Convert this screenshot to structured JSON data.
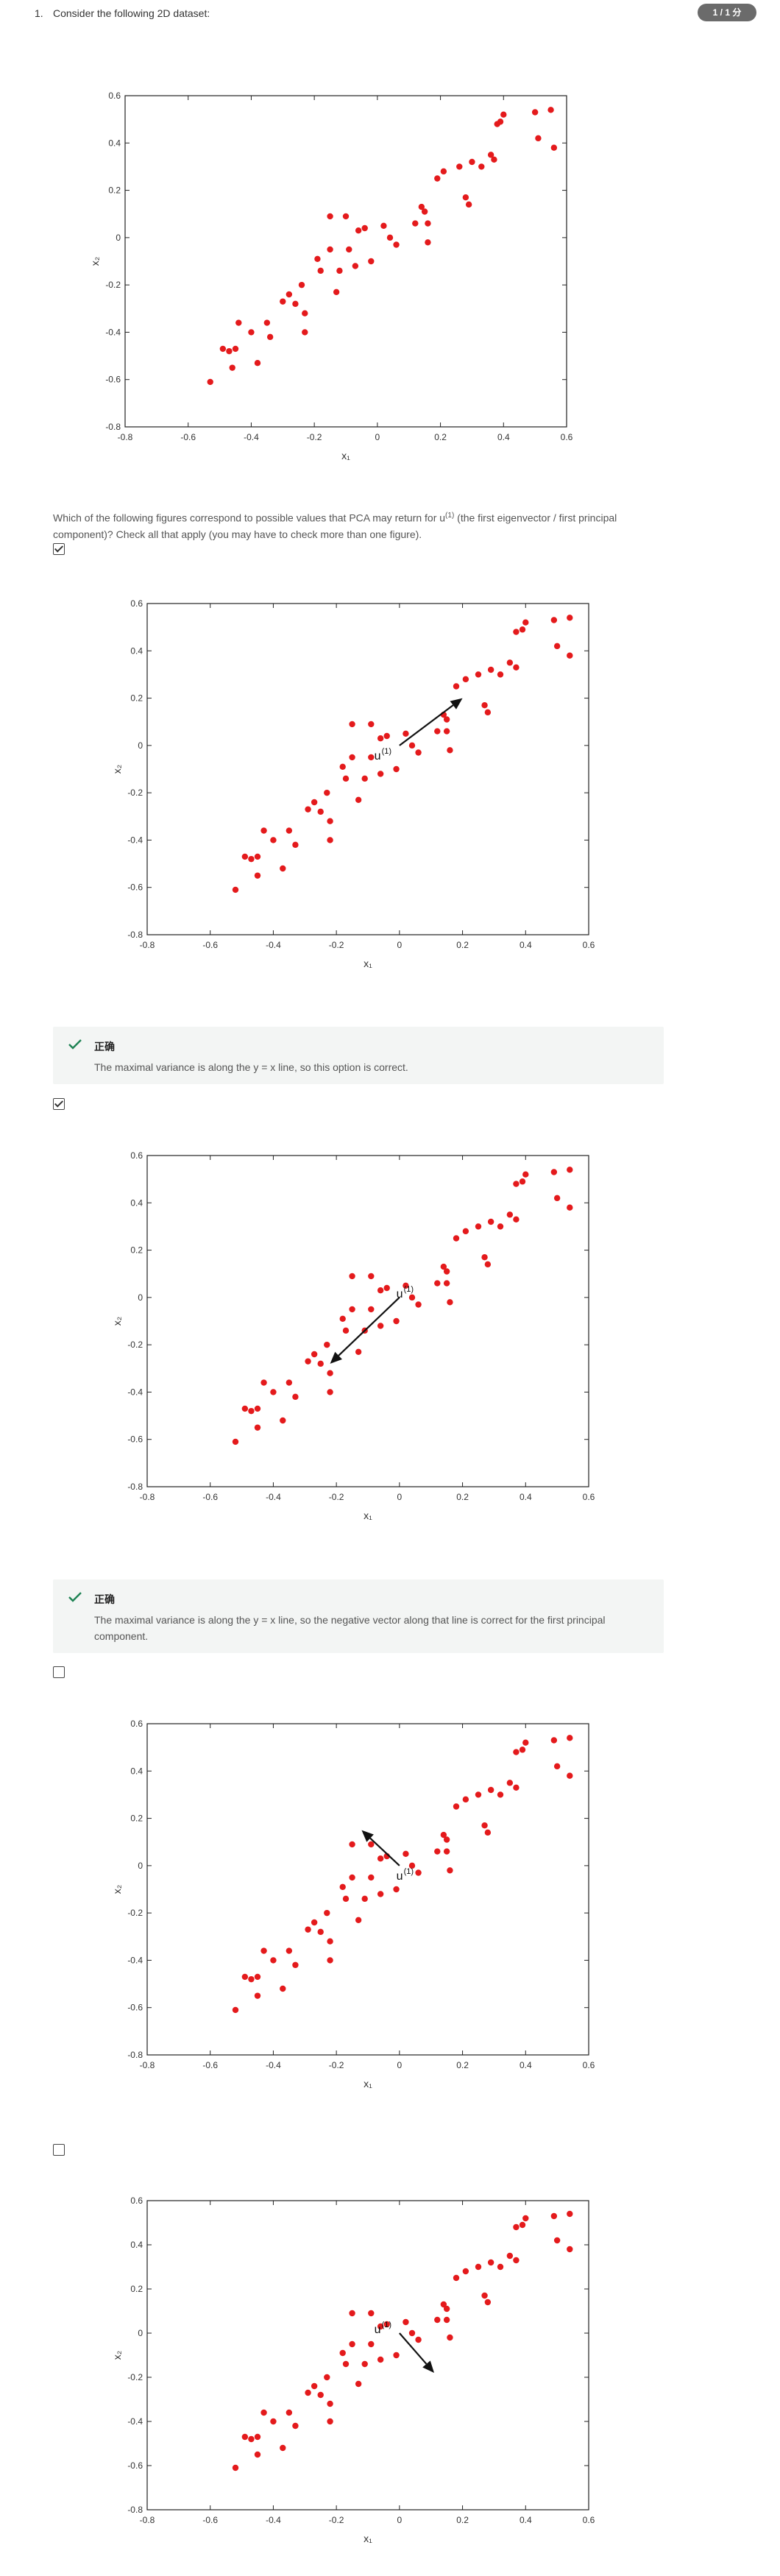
{
  "question": {
    "number": "1.",
    "intro": "Consider the following 2D dataset:",
    "score": "1 / 1 分",
    "prompt_before": "Which of the following figures correspond to possible values that PCA may return for u",
    "prompt_sup": "(1)",
    "prompt_after": " (the first eigenvector / first principal component)? Check all that apply (you may have to check more than one figure)."
  },
  "chart_data": [
    {
      "type": "scatter",
      "xlabel": "x₁",
      "ylabel": "x₂",
      "xlim": [
        -0.8,
        0.6
      ],
      "ylim": [
        -0.8,
        0.6
      ],
      "x_ticks": [
        "-0.8",
        "-0.6",
        "-0.4",
        "-0.2",
        "0",
        "0.2",
        "0.4",
        "0.6"
      ],
      "y_ticks": [
        "-0.8",
        "-0.6",
        "-0.4",
        "-0.2",
        "0",
        "0.2",
        "0.4",
        "0.6"
      ],
      "point_color": "#e41a1c",
      "points": [
        [
          -0.53,
          -0.61
        ],
        [
          -0.49,
          -0.47
        ],
        [
          -0.47,
          -0.48
        ],
        [
          -0.46,
          -0.55
        ],
        [
          -0.45,
          -0.47
        ],
        [
          -0.44,
          -0.36
        ],
        [
          -0.4,
          -0.4
        ],
        [
          -0.38,
          -0.53
        ],
        [
          -0.35,
          -0.36
        ],
        [
          -0.34,
          -0.42
        ],
        [
          -0.3,
          -0.27
        ],
        [
          -0.28,
          -0.24
        ],
        [
          -0.26,
          -0.28
        ],
        [
          -0.24,
          -0.2
        ],
        [
          -0.23,
          -0.4
        ],
        [
          -0.23,
          -0.32
        ],
        [
          -0.19,
          -0.09
        ],
        [
          -0.18,
          -0.14
        ],
        [
          -0.15,
          0.09
        ],
        [
          -0.15,
          -0.05
        ],
        [
          -0.13,
          -0.23
        ],
        [
          -0.12,
          -0.14
        ],
        [
          -0.1,
          0.09
        ],
        [
          -0.09,
          -0.05
        ],
        [
          -0.07,
          -0.12
        ],
        [
          -0.06,
          0.03
        ],
        [
          -0.04,
          0.04
        ],
        [
          -0.02,
          -0.1
        ],
        [
          0.02,
          0.05
        ],
        [
          0.04,
          0.0
        ],
        [
          0.06,
          -0.03
        ],
        [
          0.12,
          0.06
        ],
        [
          0.14,
          0.13
        ],
        [
          0.15,
          0.11
        ],
        [
          0.16,
          0.06
        ],
        [
          0.16,
          -0.02
        ],
        [
          0.19,
          0.25
        ],
        [
          0.21,
          0.28
        ],
        [
          0.26,
          0.3
        ],
        [
          0.28,
          0.17
        ],
        [
          0.29,
          0.14
        ],
        [
          0.3,
          0.32
        ],
        [
          0.33,
          0.3
        ],
        [
          0.36,
          0.35
        ],
        [
          0.37,
          0.33
        ],
        [
          0.38,
          0.48
        ],
        [
          0.39,
          0.49
        ],
        [
          0.4,
          0.52
        ],
        [
          0.5,
          0.53
        ],
        [
          0.51,
          0.42
        ],
        [
          0.55,
          0.54
        ],
        [
          0.56,
          0.38
        ]
      ]
    },
    {
      "type": "scatter",
      "xlabel": "x₁",
      "ylabel": "x₂",
      "xlim": [
        -0.8,
        0.6
      ],
      "ylim": [
        -0.8,
        0.6
      ],
      "x_ticks": [
        "-0.8",
        "-0.6",
        "-0.4",
        "-0.2",
        "0",
        "0.2",
        "0.4",
        "0.6"
      ],
      "y_ticks": [
        "-0.8",
        "-0.6",
        "-0.4",
        "-0.2",
        "0",
        "0.2",
        "0.4",
        "0.6"
      ],
      "point_color": "#e41a1c",
      "points": [
        [
          -0.52,
          -0.61
        ],
        [
          -0.49,
          -0.47
        ],
        [
          -0.47,
          -0.48
        ],
        [
          -0.45,
          -0.47
        ],
        [
          -0.45,
          -0.55
        ],
        [
          -0.43,
          -0.36
        ],
        [
          -0.4,
          -0.4
        ],
        [
          -0.37,
          -0.52
        ],
        [
          -0.35,
          -0.36
        ],
        [
          -0.33,
          -0.42
        ],
        [
          -0.29,
          -0.27
        ],
        [
          -0.27,
          -0.24
        ],
        [
          -0.25,
          -0.28
        ],
        [
          -0.23,
          -0.2
        ],
        [
          -0.22,
          -0.4
        ],
        [
          -0.22,
          -0.32
        ],
        [
          -0.18,
          -0.09
        ],
        [
          -0.17,
          -0.14
        ],
        [
          -0.15,
          0.09
        ],
        [
          -0.15,
          -0.05
        ],
        [
          -0.13,
          -0.23
        ],
        [
          -0.11,
          -0.14
        ],
        [
          -0.09,
          0.09
        ],
        [
          -0.09,
          -0.05
        ],
        [
          -0.06,
          -0.12
        ],
        [
          -0.06,
          0.03
        ],
        [
          -0.04,
          0.04
        ],
        [
          -0.01,
          -0.1
        ],
        [
          0.02,
          0.05
        ],
        [
          0.04,
          0.0
        ],
        [
          0.06,
          -0.03
        ],
        [
          0.12,
          0.06
        ],
        [
          0.14,
          0.13
        ],
        [
          0.15,
          0.11
        ],
        [
          0.15,
          0.06
        ],
        [
          0.16,
          -0.02
        ],
        [
          0.18,
          0.25
        ],
        [
          0.21,
          0.28
        ],
        [
          0.25,
          0.3
        ],
        [
          0.27,
          0.17
        ],
        [
          0.28,
          0.14
        ],
        [
          0.29,
          0.32
        ],
        [
          0.32,
          0.3
        ],
        [
          0.35,
          0.35
        ],
        [
          0.37,
          0.33
        ],
        [
          0.37,
          0.48
        ],
        [
          0.39,
          0.49
        ],
        [
          0.4,
          0.52
        ],
        [
          0.49,
          0.53
        ],
        [
          0.5,
          0.42
        ],
        [
          0.54,
          0.54
        ],
        [
          0.54,
          0.38
        ]
      ],
      "arrow": {
        "from": [
          0,
          0
        ],
        "to": [
          0.2,
          0.2
        ],
        "label": "u",
        "label_sup": "(1)",
        "label_at": [
          -0.08,
          -0.06
        ]
      }
    },
    {
      "type": "scatter",
      "xlabel": "x₁",
      "ylabel": "x₂",
      "xlim": [
        -0.8,
        0.6
      ],
      "ylim": [
        -0.8,
        0.6
      ],
      "x_ticks": [
        "-0.8",
        "-0.6",
        "-0.4",
        "-0.2",
        "0",
        "0.2",
        "0.4",
        "0.6"
      ],
      "y_ticks": [
        "-0.8",
        "-0.6",
        "-0.4",
        "-0.2",
        "0",
        "0.2",
        "0.4",
        "0.6"
      ],
      "point_color": "#e41a1c",
      "points": [
        [
          -0.52,
          -0.61
        ],
        [
          -0.49,
          -0.47
        ],
        [
          -0.47,
          -0.48
        ],
        [
          -0.45,
          -0.47
        ],
        [
          -0.45,
          -0.55
        ],
        [
          -0.43,
          -0.36
        ],
        [
          -0.4,
          -0.4
        ],
        [
          -0.37,
          -0.52
        ],
        [
          -0.35,
          -0.36
        ],
        [
          -0.33,
          -0.42
        ],
        [
          -0.29,
          -0.27
        ],
        [
          -0.27,
          -0.24
        ],
        [
          -0.25,
          -0.28
        ],
        [
          -0.23,
          -0.2
        ],
        [
          -0.22,
          -0.4
        ],
        [
          -0.22,
          -0.32
        ],
        [
          -0.18,
          -0.09
        ],
        [
          -0.17,
          -0.14
        ],
        [
          -0.15,
          0.09
        ],
        [
          -0.15,
          -0.05
        ],
        [
          -0.13,
          -0.23
        ],
        [
          -0.11,
          -0.14
        ],
        [
          -0.09,
          0.09
        ],
        [
          -0.09,
          -0.05
        ],
        [
          -0.06,
          -0.12
        ],
        [
          -0.06,
          0.03
        ],
        [
          -0.04,
          0.04
        ],
        [
          -0.01,
          -0.1
        ],
        [
          0.02,
          0.05
        ],
        [
          0.04,
          0.0
        ],
        [
          0.06,
          -0.03
        ],
        [
          0.12,
          0.06
        ],
        [
          0.14,
          0.13
        ],
        [
          0.15,
          0.11
        ],
        [
          0.15,
          0.06
        ],
        [
          0.16,
          -0.02
        ],
        [
          0.18,
          0.25
        ],
        [
          0.21,
          0.28
        ],
        [
          0.25,
          0.3
        ],
        [
          0.27,
          0.17
        ],
        [
          0.28,
          0.14
        ],
        [
          0.29,
          0.32
        ],
        [
          0.32,
          0.3
        ],
        [
          0.35,
          0.35
        ],
        [
          0.37,
          0.33
        ],
        [
          0.37,
          0.48
        ],
        [
          0.39,
          0.49
        ],
        [
          0.4,
          0.52
        ],
        [
          0.49,
          0.53
        ],
        [
          0.5,
          0.42
        ],
        [
          0.54,
          0.54
        ],
        [
          0.54,
          0.38
        ]
      ],
      "arrow": {
        "from": [
          0,
          0
        ],
        "to": [
          -0.22,
          -0.28
        ],
        "label": "u",
        "label_sup": "(1)",
        "label_at": [
          -0.01,
          0.0
        ]
      }
    },
    {
      "type": "scatter",
      "xlabel": "x₁",
      "ylabel": "x₂",
      "xlim": [
        -0.8,
        0.6
      ],
      "ylim": [
        -0.8,
        0.6
      ],
      "x_ticks": [
        "-0.8",
        "-0.6",
        "-0.4",
        "-0.2",
        "0",
        "0.2",
        "0.4",
        "0.6"
      ],
      "y_ticks": [
        "-0.8",
        "-0.6",
        "-0.4",
        "-0.2",
        "0",
        "0.2",
        "0.4",
        "0.6"
      ],
      "point_color": "#e41a1c",
      "points": [
        [
          -0.52,
          -0.61
        ],
        [
          -0.49,
          -0.47
        ],
        [
          -0.47,
          -0.48
        ],
        [
          -0.45,
          -0.47
        ],
        [
          -0.45,
          -0.55
        ],
        [
          -0.43,
          -0.36
        ],
        [
          -0.4,
          -0.4
        ],
        [
          -0.37,
          -0.52
        ],
        [
          -0.35,
          -0.36
        ],
        [
          -0.33,
          -0.42
        ],
        [
          -0.29,
          -0.27
        ],
        [
          -0.27,
          -0.24
        ],
        [
          -0.25,
          -0.28
        ],
        [
          -0.23,
          -0.2
        ],
        [
          -0.22,
          -0.4
        ],
        [
          -0.22,
          -0.32
        ],
        [
          -0.18,
          -0.09
        ],
        [
          -0.17,
          -0.14
        ],
        [
          -0.15,
          0.09
        ],
        [
          -0.15,
          -0.05
        ],
        [
          -0.13,
          -0.23
        ],
        [
          -0.11,
          -0.14
        ],
        [
          -0.09,
          0.09
        ],
        [
          -0.09,
          -0.05
        ],
        [
          -0.06,
          -0.12
        ],
        [
          -0.06,
          0.03
        ],
        [
          -0.04,
          0.04
        ],
        [
          -0.01,
          -0.1
        ],
        [
          0.02,
          0.05
        ],
        [
          0.04,
          0.0
        ],
        [
          0.06,
          -0.03
        ],
        [
          0.12,
          0.06
        ],
        [
          0.14,
          0.13
        ],
        [
          0.15,
          0.11
        ],
        [
          0.15,
          0.06
        ],
        [
          0.16,
          -0.02
        ],
        [
          0.18,
          0.25
        ],
        [
          0.21,
          0.28
        ],
        [
          0.25,
          0.3
        ],
        [
          0.27,
          0.17
        ],
        [
          0.28,
          0.14
        ],
        [
          0.29,
          0.32
        ],
        [
          0.32,
          0.3
        ],
        [
          0.35,
          0.35
        ],
        [
          0.37,
          0.33
        ],
        [
          0.37,
          0.48
        ],
        [
          0.39,
          0.49
        ],
        [
          0.4,
          0.52
        ],
        [
          0.49,
          0.53
        ],
        [
          0.5,
          0.42
        ],
        [
          0.54,
          0.54
        ],
        [
          0.54,
          0.38
        ]
      ],
      "arrow": {
        "from": [
          0,
          0
        ],
        "to": [
          -0.12,
          0.15
        ],
        "label": "u",
        "label_sup": "(1)",
        "label_at": [
          -0.01,
          -0.06
        ]
      }
    },
    {
      "type": "scatter",
      "xlabel": "x₁",
      "ylabel": "x₂",
      "xlim": [
        -0.8,
        0.6
      ],
      "ylim": [
        -0.8,
        0.6
      ],
      "x_ticks": [
        "-0.8",
        "-0.6",
        "-0.4",
        "-0.2",
        "0",
        "0.2",
        "0.4",
        "0.6"
      ],
      "y_ticks": [
        "-0.8",
        "-0.6",
        "-0.4",
        "-0.2",
        "0",
        "0.2",
        "0.4",
        "0.6"
      ],
      "point_color": "#e41a1c",
      "points": [
        [
          -0.52,
          -0.61
        ],
        [
          -0.49,
          -0.47
        ],
        [
          -0.47,
          -0.48
        ],
        [
          -0.45,
          -0.47
        ],
        [
          -0.45,
          -0.55
        ],
        [
          -0.43,
          -0.36
        ],
        [
          -0.4,
          -0.4
        ],
        [
          -0.37,
          -0.52
        ],
        [
          -0.35,
          -0.36
        ],
        [
          -0.33,
          -0.42
        ],
        [
          -0.29,
          -0.27
        ],
        [
          -0.27,
          -0.24
        ],
        [
          -0.25,
          -0.28
        ],
        [
          -0.23,
          -0.2
        ],
        [
          -0.22,
          -0.4
        ],
        [
          -0.22,
          -0.32
        ],
        [
          -0.18,
          -0.09
        ],
        [
          -0.17,
          -0.14
        ],
        [
          -0.15,
          0.09
        ],
        [
          -0.15,
          -0.05
        ],
        [
          -0.13,
          -0.23
        ],
        [
          -0.11,
          -0.14
        ],
        [
          -0.09,
          0.09
        ],
        [
          -0.09,
          -0.05
        ],
        [
          -0.06,
          -0.12
        ],
        [
          -0.06,
          0.03
        ],
        [
          -0.04,
          0.04
        ],
        [
          -0.01,
          -0.1
        ],
        [
          0.02,
          0.05
        ],
        [
          0.04,
          0.0
        ],
        [
          0.06,
          -0.03
        ],
        [
          0.12,
          0.06
        ],
        [
          0.14,
          0.13
        ],
        [
          0.15,
          0.11
        ],
        [
          0.15,
          0.06
        ],
        [
          0.16,
          -0.02
        ],
        [
          0.18,
          0.25
        ],
        [
          0.21,
          0.28
        ],
        [
          0.25,
          0.3
        ],
        [
          0.27,
          0.17
        ],
        [
          0.28,
          0.14
        ],
        [
          0.29,
          0.32
        ],
        [
          0.32,
          0.3
        ],
        [
          0.35,
          0.35
        ],
        [
          0.37,
          0.33
        ],
        [
          0.37,
          0.48
        ],
        [
          0.39,
          0.49
        ],
        [
          0.4,
          0.52
        ],
        [
          0.49,
          0.53
        ],
        [
          0.5,
          0.42
        ],
        [
          0.54,
          0.54
        ],
        [
          0.54,
          0.38
        ]
      ],
      "arrow": {
        "from": [
          0,
          0
        ],
        "to": [
          0.11,
          -0.18
        ],
        "label": "u",
        "label_sup": "(1)",
        "label_at": [
          -0.08,
          0.0
        ]
      }
    }
  ],
  "options": [
    {
      "checked": true
    },
    {
      "checked": true
    },
    {
      "checked": false
    },
    {
      "checked": false
    }
  ],
  "feedback": [
    {
      "title": "正确",
      "text": "The maximal variance is along the y = x line, so this option is correct."
    },
    {
      "title": "正确",
      "text": "The maximal variance is along the y = x line, so the negative vector along that line is correct for the first principal component."
    }
  ],
  "colors": {
    "point": "#e41a1c",
    "arrow": "#111111",
    "check_green": "#1f8354",
    "badge": "#6b6b6b"
  }
}
